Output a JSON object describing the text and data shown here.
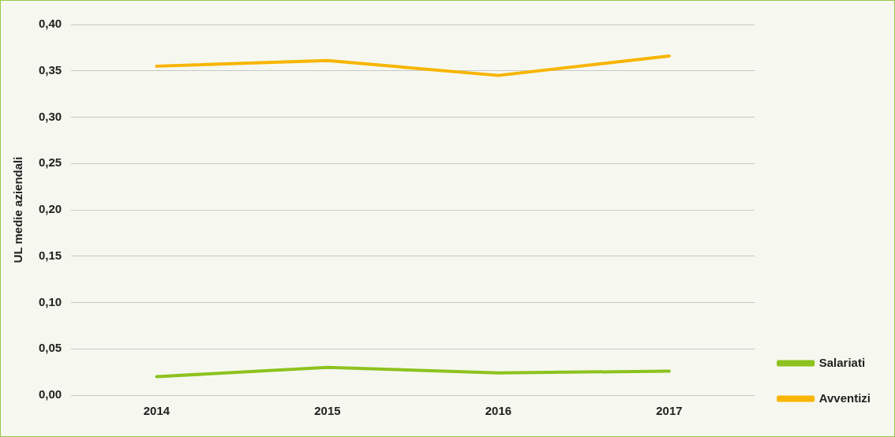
{
  "chart_data": {
    "type": "line",
    "ylabel": "UL medie aziendali",
    "categories": [
      "2014",
      "2015",
      "2016",
      "2017"
    ],
    "series": [
      {
        "name": "Salariati",
        "color": "#8dc21f",
        "values": [
          0.02,
          0.03,
          0.024,
          0.026
        ]
      },
      {
        "name": "Avventizi",
        "color": "#f7b500",
        "values": [
          0.355,
          0.361,
          0.345,
          0.366
        ]
      }
    ],
    "ylim": [
      0,
      0.4
    ],
    "yticks": [
      {
        "value": 0,
        "label": "0,00"
      },
      {
        "value": 0.05,
        "label": "0,05"
      },
      {
        "value": 0.1,
        "label": "0,10"
      },
      {
        "value": 0.15,
        "label": "0,15"
      },
      {
        "value": 0.2,
        "label": "0,20"
      },
      {
        "value": 0.25,
        "label": "0,25"
      },
      {
        "value": 0.3,
        "label": "0,30"
      },
      {
        "value": 0.35,
        "label": "0,35"
      },
      {
        "value": 0.4,
        "label": "0,40"
      }
    ],
    "grid": "y",
    "legend": "bottom right",
    "marker": "none",
    "line_style": "solid"
  }
}
